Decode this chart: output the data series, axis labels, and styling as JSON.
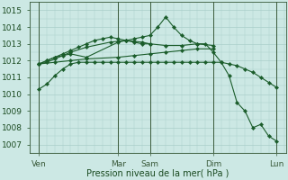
{
  "xlabel": "Pression niveau de la mer( hPa )",
  "background_color": "#cce8e4",
  "grid_color": "#aacfca",
  "line_color": "#1a5c2a",
  "ylim": [
    1006.5,
    1015.5
  ],
  "xlim": [
    -0.1,
    16.1
  ],
  "yticks": [
    1007,
    1008,
    1009,
    1010,
    1011,
    1012,
    1013,
    1014,
    1015
  ],
  "xtick_positions": [
    0.5,
    5.5,
    7.5,
    11.5,
    15.5
  ],
  "xtick_labels": [
    "Ven",
    "Mar",
    "Sam",
    "Dim",
    "Lun"
  ],
  "vline_positions": [
    0.5,
    5.5,
    7.5,
    11.5,
    15.5
  ],
  "series": [
    {
      "x": [
        0.5,
        1.0,
        1.5,
        2.0,
        2.5,
        3.0,
        3.5,
        4.0,
        4.5,
        5.0,
        5.5,
        6.0,
        6.5,
        7.0,
        7.5,
        8.0,
        8.5,
        9.0,
        9.5,
        10.0,
        10.5,
        11.0,
        11.5,
        12.0,
        12.5,
        13.0,
        13.5,
        14.0,
        14.5,
        15.0,
        15.5
      ],
      "y": [
        1010.3,
        1010.6,
        1011.1,
        1011.5,
        1011.8,
        1011.9,
        1011.9,
        1011.9,
        1011.9,
        1011.9,
        1011.9,
        1011.9,
        1011.9,
        1011.9,
        1011.9,
        1011.9,
        1011.9,
        1011.9,
        1011.9,
        1011.9,
        1011.9,
        1011.9,
        1011.9,
        1011.9,
        1011.8,
        1011.7,
        1011.5,
        1011.3,
        1011.0,
        1010.7,
        1010.4
      ]
    },
    {
      "x": [
        0.5,
        1.5,
        2.5,
        3.5,
        5.5,
        6.5,
        7.5,
        8.5,
        9.5,
        10.5,
        11.5
      ],
      "y": [
        1011.8,
        1011.9,
        1012.0,
        1012.1,
        1012.2,
        1012.3,
        1012.4,
        1012.5,
        1012.6,
        1012.7,
        1012.7
      ]
    },
    {
      "x": [
        0.5,
        1.0,
        1.5,
        2.5,
        3.5,
        5.0,
        5.5,
        6.0,
        6.5,
        7.0,
        7.5,
        8.5,
        9.5,
        10.5,
        11.5
      ],
      "y": [
        1011.8,
        1011.9,
        1012.1,
        1012.5,
        1012.8,
        1013.1,
        1013.15,
        1013.2,
        1013.15,
        1013.1,
        1013.0,
        1012.9,
        1012.9,
        1013.0,
        1012.9
      ]
    },
    {
      "x": [
        0.5,
        1.0,
        1.5,
        2.0,
        2.5,
        3.5,
        5.5,
        6.0,
        6.5,
        7.0,
        7.5,
        8.0,
        8.5,
        9.0,
        9.5,
        10.0,
        10.5,
        11.0,
        11.5,
        12.0,
        12.5,
        13.0,
        13.5,
        14.0,
        14.5,
        15.0,
        15.5
      ],
      "y": [
        1011.8,
        1012.0,
        1012.2,
        1012.3,
        1012.4,
        1012.2,
        1013.1,
        1013.2,
        1013.3,
        1013.4,
        1013.5,
        1014.0,
        1014.6,
        1014.0,
        1013.5,
        1013.2,
        1013.0,
        1013.0,
        1012.5,
        1011.9,
        1011.1,
        1009.5,
        1009.0,
        1008.0,
        1008.2,
        1007.5,
        1007.2
      ]
    },
    {
      "x": [
        0.5,
        1.0,
        1.5,
        2.0,
        2.5,
        3.0,
        3.5,
        4.0,
        4.5,
        5.0,
        5.5,
        6.0,
        6.5,
        7.0,
        7.5
      ],
      "y": [
        1011.8,
        1012.0,
        1012.2,
        1012.4,
        1012.6,
        1012.8,
        1013.0,
        1013.2,
        1013.3,
        1013.4,
        1013.3,
        1013.2,
        1013.1,
        1013.0,
        1013.0
      ]
    }
  ]
}
